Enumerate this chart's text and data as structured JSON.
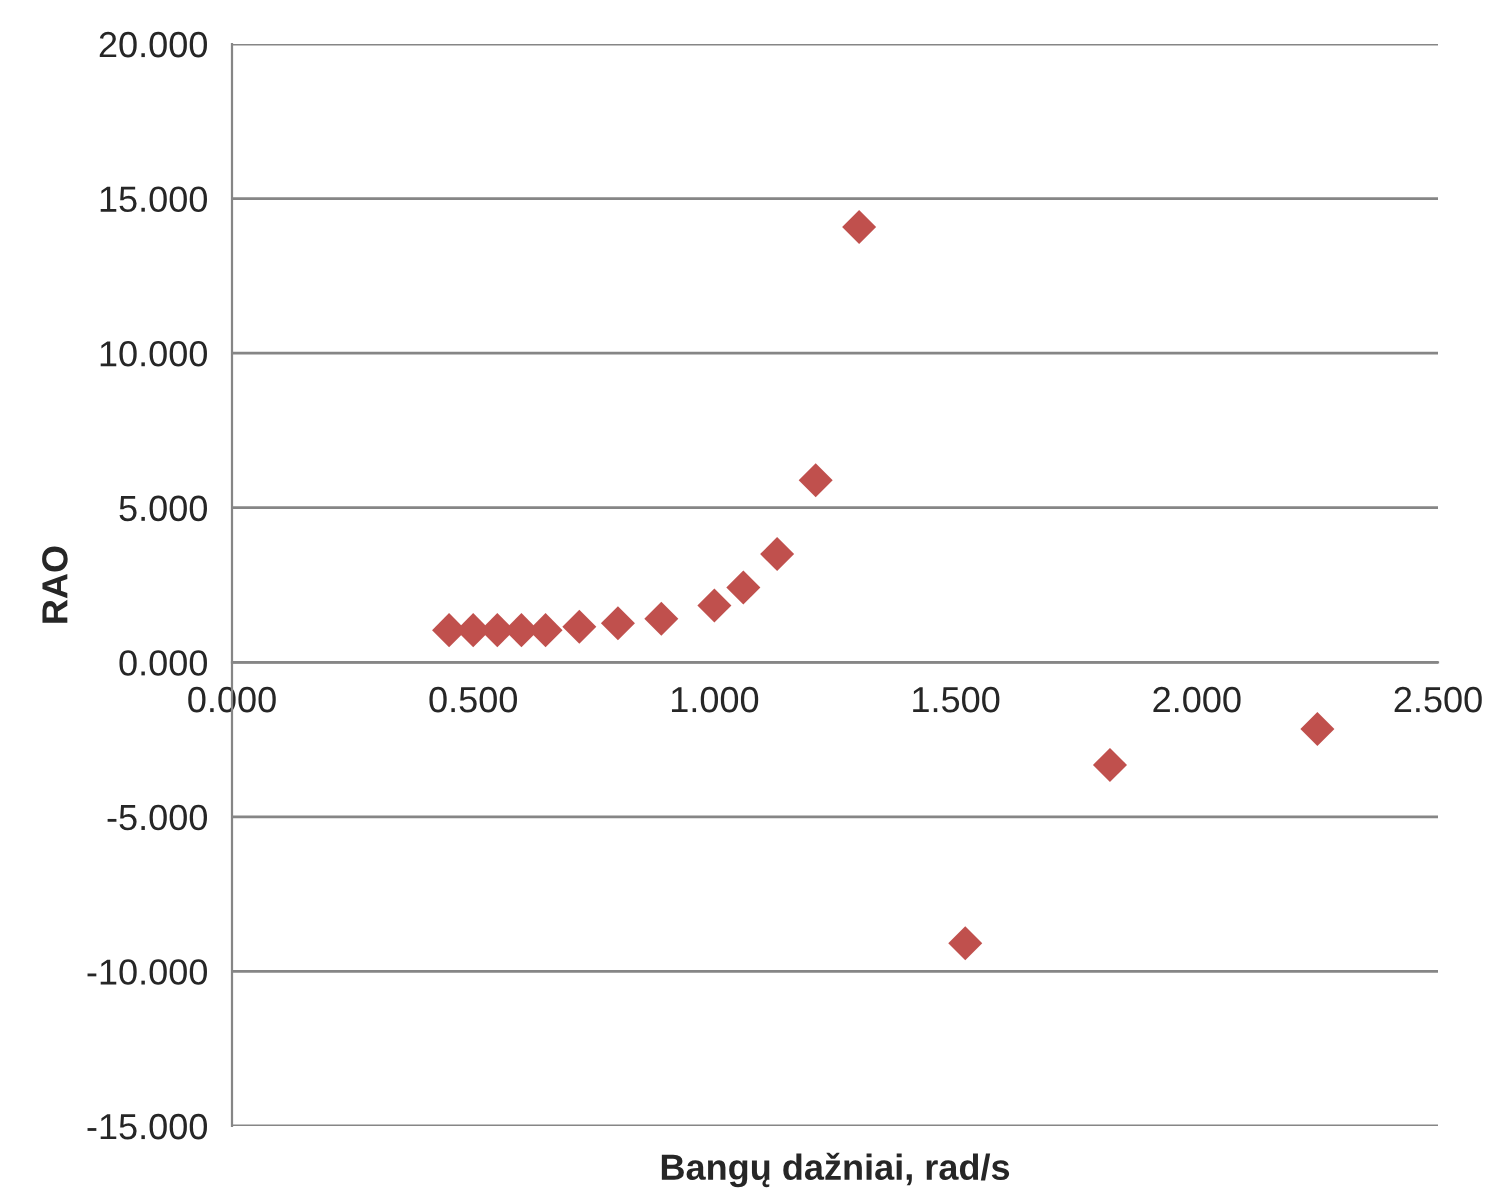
{
  "chart_data": {
    "type": "scatter",
    "xlabel": "Bangų dažniai, rad/s",
    "ylabel": "RAO",
    "x": [
      0.45,
      0.5,
      0.55,
      0.6,
      0.65,
      0.72,
      0.8,
      0.89,
      1.0,
      1.06,
      1.13,
      1.21,
      1.3,
      1.52,
      1.82,
      2.25
    ],
    "series": [
      {
        "color": "#c0504d",
        "values": [
          1.04,
          1.04,
          1.04,
          1.04,
          1.04,
          1.15,
          1.26,
          1.41,
          1.84,
          2.42,
          3.5,
          5.89,
          14.08,
          -9.09,
          -3.32,
          -2.16
        ]
      }
    ],
    "xlim": [
      0,
      2.5
    ],
    "ylim": [
      -15,
      20
    ],
    "xticks": [
      {
        "value": 0,
        "label": "0.000"
      },
      {
        "value": 0.5,
        "label": "0.500"
      },
      {
        "value": 1,
        "label": "1.000"
      },
      {
        "value": 1.5,
        "label": "1.500"
      },
      {
        "value": 2,
        "label": "2.000"
      },
      {
        "value": 2.5,
        "label": "2.500"
      }
    ],
    "yticks": [
      {
        "value": -15,
        "label": "-15.000"
      },
      {
        "value": -10,
        "label": "-10.000"
      },
      {
        "value": -5,
        "label": "-5.000"
      },
      {
        "value": 0,
        "label": "0.000"
      },
      {
        "value": 5,
        "label": "5.000"
      },
      {
        "value": 10,
        "label": "10.000"
      },
      {
        "value": 15,
        "label": "15.000"
      },
      {
        "value": 20,
        "label": "20.000"
      }
    ],
    "grid": "y",
    "marker": "diamond"
  }
}
